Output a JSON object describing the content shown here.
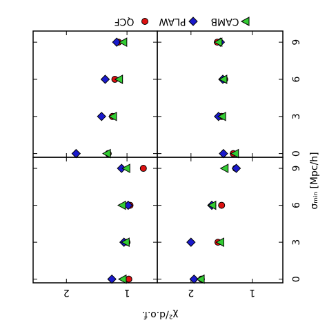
{
  "chart_data": [
    {
      "type": "scatter",
      "xlabel": "σₘᵢₙ [Mpc/h]",
      "ylabel": "χ²/d.o.f.",
      "x": [
        0,
        3,
        6,
        9
      ],
      "xlim": [
        -0.3,
        9.9
      ],
      "xticks": [
        0,
        3,
        6,
        9
      ],
      "ylim": [
        0.5,
        2.55
      ],
      "yticks": [
        1,
        2
      ],
      "series": [
        {
          "name": "QCF",
          "color": "#dd1111",
          "marker": "circle",
          "values": [
            1.31,
            1.24,
            1.2,
            1.14
          ]
        },
        {
          "name": "PLAW",
          "color": "#1a1acc",
          "marker": "diamond",
          "values": [
            1.84,
            1.42,
            1.36,
            1.17
          ]
        },
        {
          "name": "CAMB",
          "color": "#33cc33",
          "marker": "triangle",
          "values": [
            1.33,
            1.23,
            1.13,
            1.06
          ]
        }
      ]
    },
    {
      "type": "scatter",
      "x": [
        0,
        3,
        6,
        9
      ],
      "xlim": [
        -0.3,
        9.9
      ],
      "xticks": [
        0,
        3,
        6,
        9
      ],
      "ylim": [
        0.5,
        2.55
      ],
      "yticks": [
        1,
        2
      ],
      "series": [
        {
          "name": "QCF",
          "color": "#dd1111",
          "marker": "circle",
          "values": [
            1.31,
            1.5,
            1.45,
            1.57
          ]
        },
        {
          "name": "PLAW",
          "color": "#1a1acc",
          "marker": "diamond",
          "values": [
            1.47,
            1.55,
            1.48,
            1.52
          ]
        },
        {
          "name": "CAMB",
          "color": "#33cc33",
          "marker": "triangle",
          "values": [
            1.28,
            1.49,
            1.47,
            1.55
          ]
        }
      ]
    },
    {
      "type": "scatter",
      "x": [
        0,
        3,
        6,
        9
      ],
      "xlim": [
        -0.3,
        9.9
      ],
      "xticks": [
        0,
        3,
        6,
        9
      ],
      "ylim": [
        0.5,
        2.55
      ],
      "yticks": [
        1,
        2
      ],
      "series": [
        {
          "name": "QCF",
          "color": "#dd1111",
          "marker": "circle",
          "values": [
            0.97,
            1.0,
            0.95,
            0.73
          ]
        },
        {
          "name": "PLAW",
          "color": "#1a1acc",
          "marker": "diamond",
          "values": [
            1.25,
            1.05,
            0.98,
            1.09
          ]
        },
        {
          "name": "CAMB",
          "color": "#33cc33",
          "marker": "triangle",
          "values": [
            1.07,
            1.02,
            1.08,
            1.01
          ]
        }
      ]
    },
    {
      "type": "scatter",
      "x": [
        0,
        3,
        6,
        9
      ],
      "xlim": [
        -0.3,
        9.9
      ],
      "xticks": [
        0,
        3,
        6,
        9
      ],
      "ylim": [
        0.5,
        2.55
      ],
      "yticks": [
        1,
        2
      ],
      "series": [
        {
          "name": "QCF",
          "color": "#dd1111",
          "marker": "circle",
          "values": [
            1.83,
            1.56,
            1.5,
            1.27
          ]
        },
        {
          "name": "PLAW",
          "color": "#1a1acc",
          "marker": "diamond",
          "values": [
            1.95,
            2.0,
            1.66,
            1.26
          ]
        },
        {
          "name": "CAMB",
          "color": "#33cc33",
          "marker": "triangle",
          "values": [
            1.84,
            1.52,
            1.65,
            1.45
          ]
        }
      ]
    }
  ]
}
